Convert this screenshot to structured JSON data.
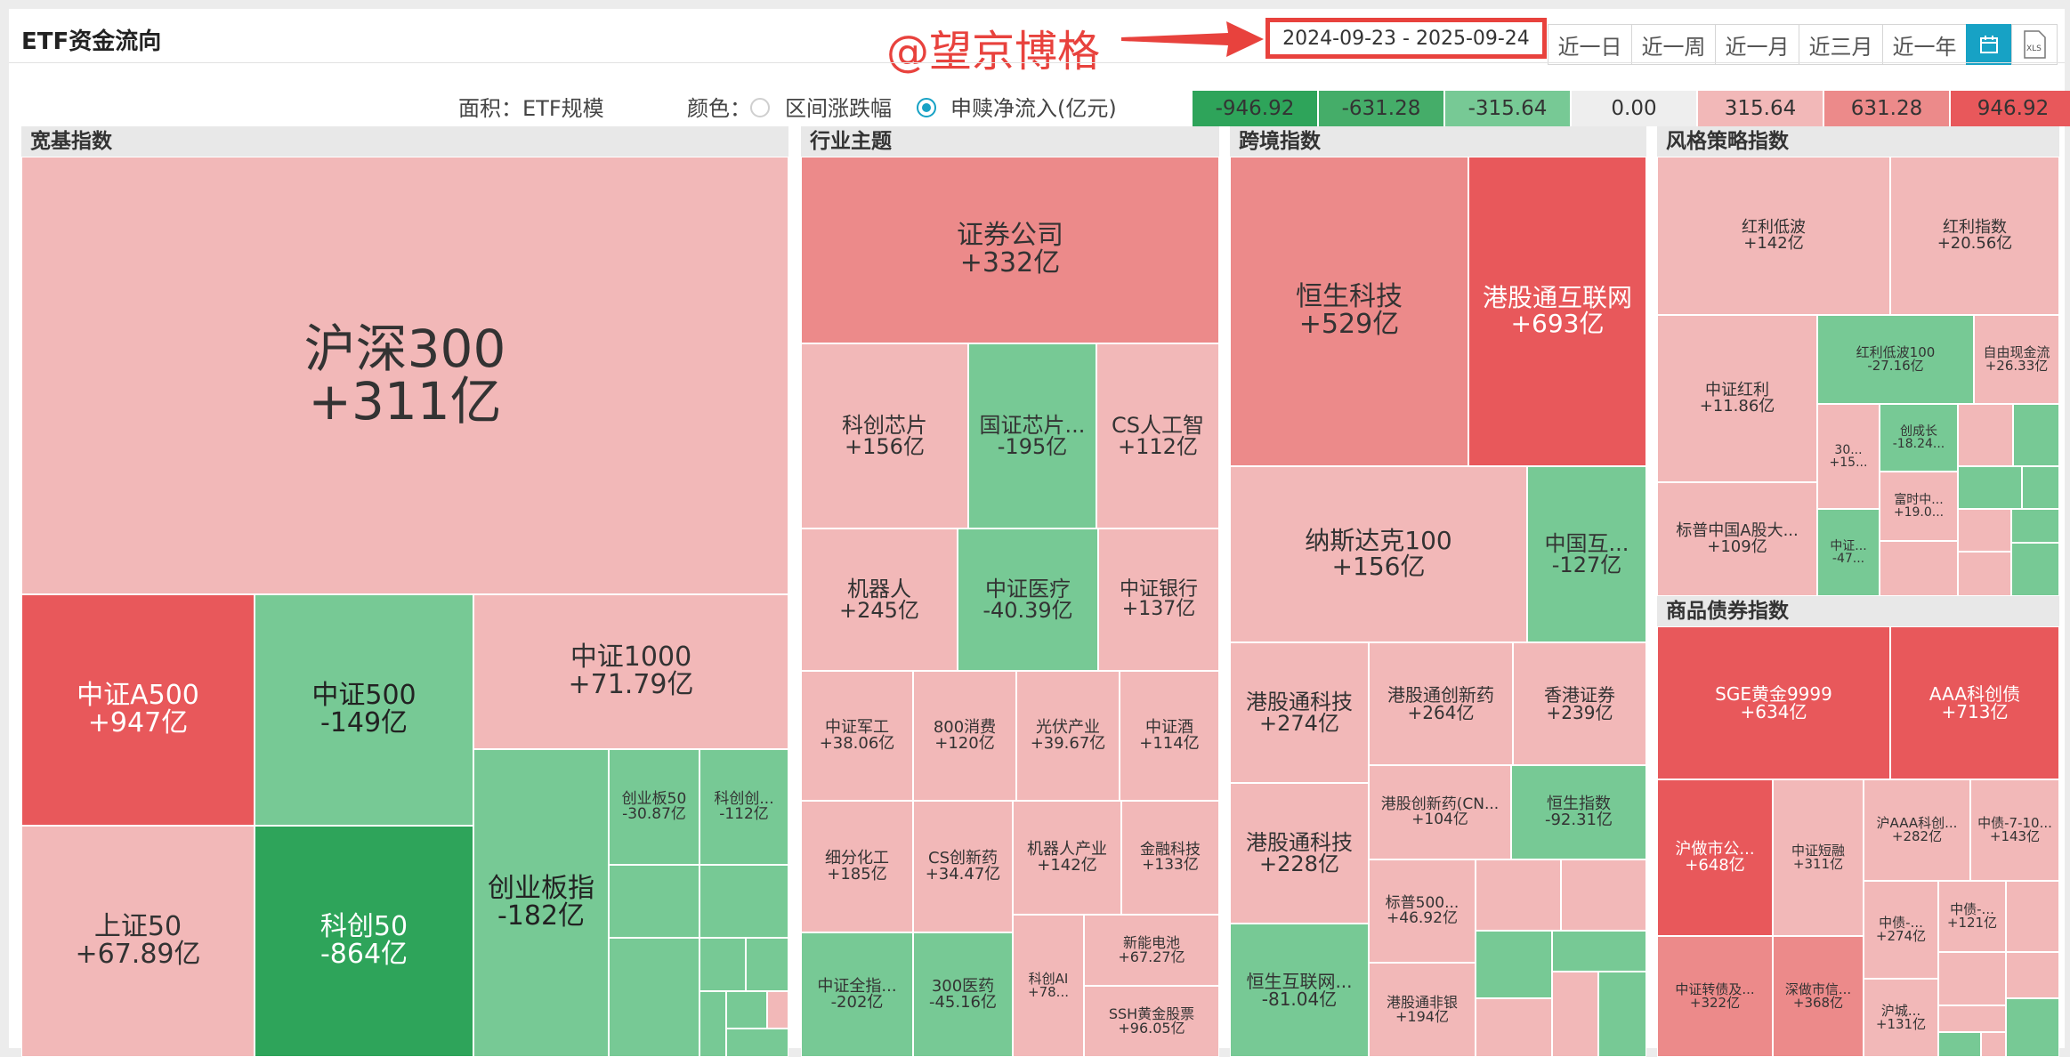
{
  "header": {
    "title": "ETF资金流向",
    "watermark": "@望京博格",
    "date_range": "2024-09-23 - 2025-09-24",
    "periods": [
      "近一日",
      "近一周",
      "近一月",
      "近三月",
      "近一年"
    ]
  },
  "options": {
    "area_label": "面积：ETF规模",
    "color_label": "颜色：",
    "color_opt1": "区间涨跌幅",
    "color_opt2": "申赎净流入(亿元)",
    "selected": "申赎净流入(亿元)"
  },
  "legend": [
    "-946.92",
    "-631.28",
    "-315.64",
    "0.00",
    "315.64",
    "631.28",
    "946.92"
  ],
  "colors": {
    "neg3": "#2ea45a",
    "neg2": "#45ad69",
    "neg1": "#77c995",
    "zero": "#eeeeee",
    "pos1": "#f2b8b8",
    "pos2": "#ec8a8a",
    "pos3": "#e8585b",
    "accent": "#17a2c5",
    "watermark": "#e8423d"
  },
  "groups": [
    {
      "title": "宽基指数",
      "tiles": [
        {
          "name": "沪深300",
          "value": "+311亿"
        },
        {
          "name": "中证A500",
          "value": "+947亿"
        },
        {
          "name": "中证500",
          "value": "-149亿"
        },
        {
          "name": "中证1000",
          "value": "+71.79亿"
        },
        {
          "name": "上证50",
          "value": "+67.89亿"
        },
        {
          "name": "科创50",
          "value": "-864亿"
        },
        {
          "name": "创业板指",
          "value": "-182亿"
        },
        {
          "name": "创业板50",
          "value": "-30.87亿"
        },
        {
          "name": "科创创...",
          "value": "-112亿"
        }
      ]
    },
    {
      "title": "行业主题",
      "tiles": [
        {
          "name": "证券公司",
          "value": "+332亿"
        },
        {
          "name": "科创芯片",
          "value": "+156亿"
        },
        {
          "name": "国证芯片...",
          "value": "-195亿"
        },
        {
          "name": "CS人工智",
          "value": "+112亿"
        },
        {
          "name": "机器人",
          "value": "+245亿"
        },
        {
          "name": "中证医疗",
          "value": "-40.39亿"
        },
        {
          "name": "中证银行",
          "value": "+137亿"
        },
        {
          "name": "中证军工",
          "value": "+38.06亿"
        },
        {
          "name": "800消费",
          "value": "+120亿"
        },
        {
          "name": "光伏产业",
          "value": "+39.67亿"
        },
        {
          "name": "中证酒",
          "value": "+114亿"
        },
        {
          "name": "细分化工",
          "value": "+185亿"
        },
        {
          "name": "CS创新药",
          "value": "+34.47亿"
        },
        {
          "name": "机器人产业",
          "value": "+142亿"
        },
        {
          "name": "金融科技",
          "value": "+133亿"
        },
        {
          "name": "中证全指...",
          "value": "-202亿"
        },
        {
          "name": "300医药",
          "value": "-45.16亿"
        },
        {
          "name": "科创AI",
          "value": "+78..."
        },
        {
          "name": "新能电池",
          "value": "+67.27亿"
        },
        {
          "name": "SSH黄金股票",
          "value": "+96.05亿"
        }
      ]
    },
    {
      "title": "跨境指数",
      "tiles": [
        {
          "name": "恒生科技",
          "value": "+529亿"
        },
        {
          "name": "港股通互联网",
          "value": "+693亿"
        },
        {
          "name": "纳斯达克100",
          "value": "+156亿"
        },
        {
          "name": "中国互...",
          "value": "-127亿"
        },
        {
          "name": "港股通科技",
          "value": "+274亿"
        },
        {
          "name": "港股通创新药",
          "value": "+264亿"
        },
        {
          "name": "香港证券",
          "value": "+239亿"
        },
        {
          "name": "港股创新药(CN...",
          "value": "+104亿"
        },
        {
          "name": "恒生指数",
          "value": "-92.31亿"
        },
        {
          "name": "港股通科技",
          "value": "+228亿"
        },
        {
          "name": "标普500...",
          "value": "+46.92亿"
        },
        {
          "name": "恒生互联网...",
          "value": "-81.04亿"
        },
        {
          "name": "港股通非银",
          "value": "+194亿"
        }
      ]
    },
    {
      "title": "风格策略指数",
      "tiles": [
        {
          "name": "红利低波",
          "value": "+142亿"
        },
        {
          "name": "红利指数",
          "value": "+20.56亿"
        },
        {
          "name": "中证红利",
          "value": "+11.86亿"
        },
        {
          "name": "红利低波100",
          "value": "-27.16亿"
        },
        {
          "name": "自由现金流",
          "value": "+26.33亿"
        },
        {
          "name": "创成长",
          "value": "-18.24..."
        },
        {
          "name": "30...",
          "value": "+15..."
        },
        {
          "name": "富时中...",
          "value": "+19.0..."
        },
        {
          "name": "标普中国A股大...",
          "value": "+109亿"
        },
        {
          "name": "中证...",
          "value": "-47..."
        }
      ]
    },
    {
      "title": "商品债券指数",
      "tiles": [
        {
          "name": "SGE黄金9999",
          "value": "+634亿"
        },
        {
          "name": "AAA科创债",
          "value": "+713亿"
        },
        {
          "name": "沪做市公...",
          "value": "+648亿"
        },
        {
          "name": "中证短融",
          "value": "+311亿"
        },
        {
          "name": "沪AAA科创...",
          "value": "+282亿"
        },
        {
          "name": "中债-7-10...",
          "value": "+143亿"
        },
        {
          "name": "中债-...",
          "value": "+274亿"
        },
        {
          "name": "中债-...",
          "value": "+121亿"
        },
        {
          "name": "中证转债及...",
          "value": "+322亿"
        },
        {
          "name": "深做市信...",
          "value": "+368亿"
        },
        {
          "name": "沪城...",
          "value": "+131亿"
        }
      ]
    }
  ]
}
